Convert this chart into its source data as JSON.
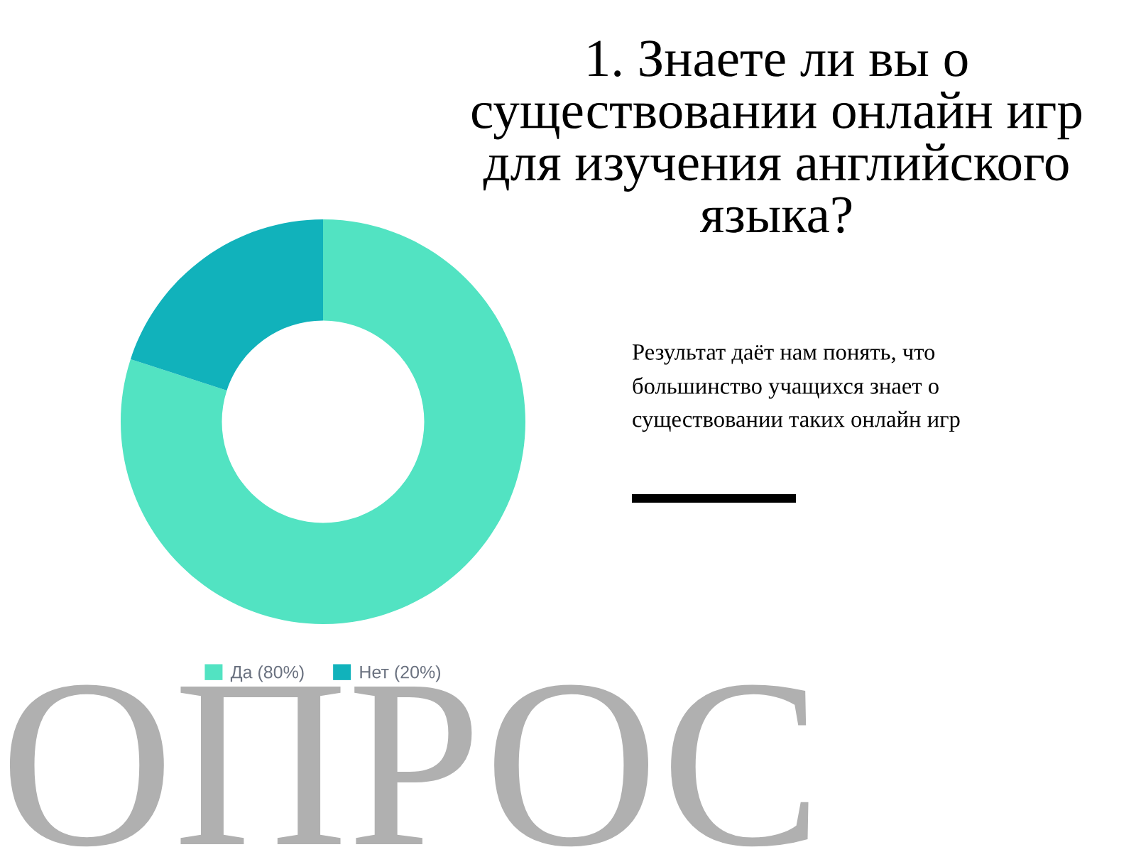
{
  "chart_data": {
    "type": "donut",
    "title": "1. Знаете ли вы о существовании онлайн игр для изучения английского языка?",
    "categories": [
      "Да (80%)",
      "Нет (20%)"
    ],
    "values": [
      80,
      20
    ],
    "colors": [
      "#52e3c2",
      "#11b2bb"
    ],
    "legend": "bottom",
    "annotations": [
      "Результат даёт нам понять, что большинство учащихся знает о существовании таких онлайн игр",
      "ОПРОС"
    ]
  }
}
